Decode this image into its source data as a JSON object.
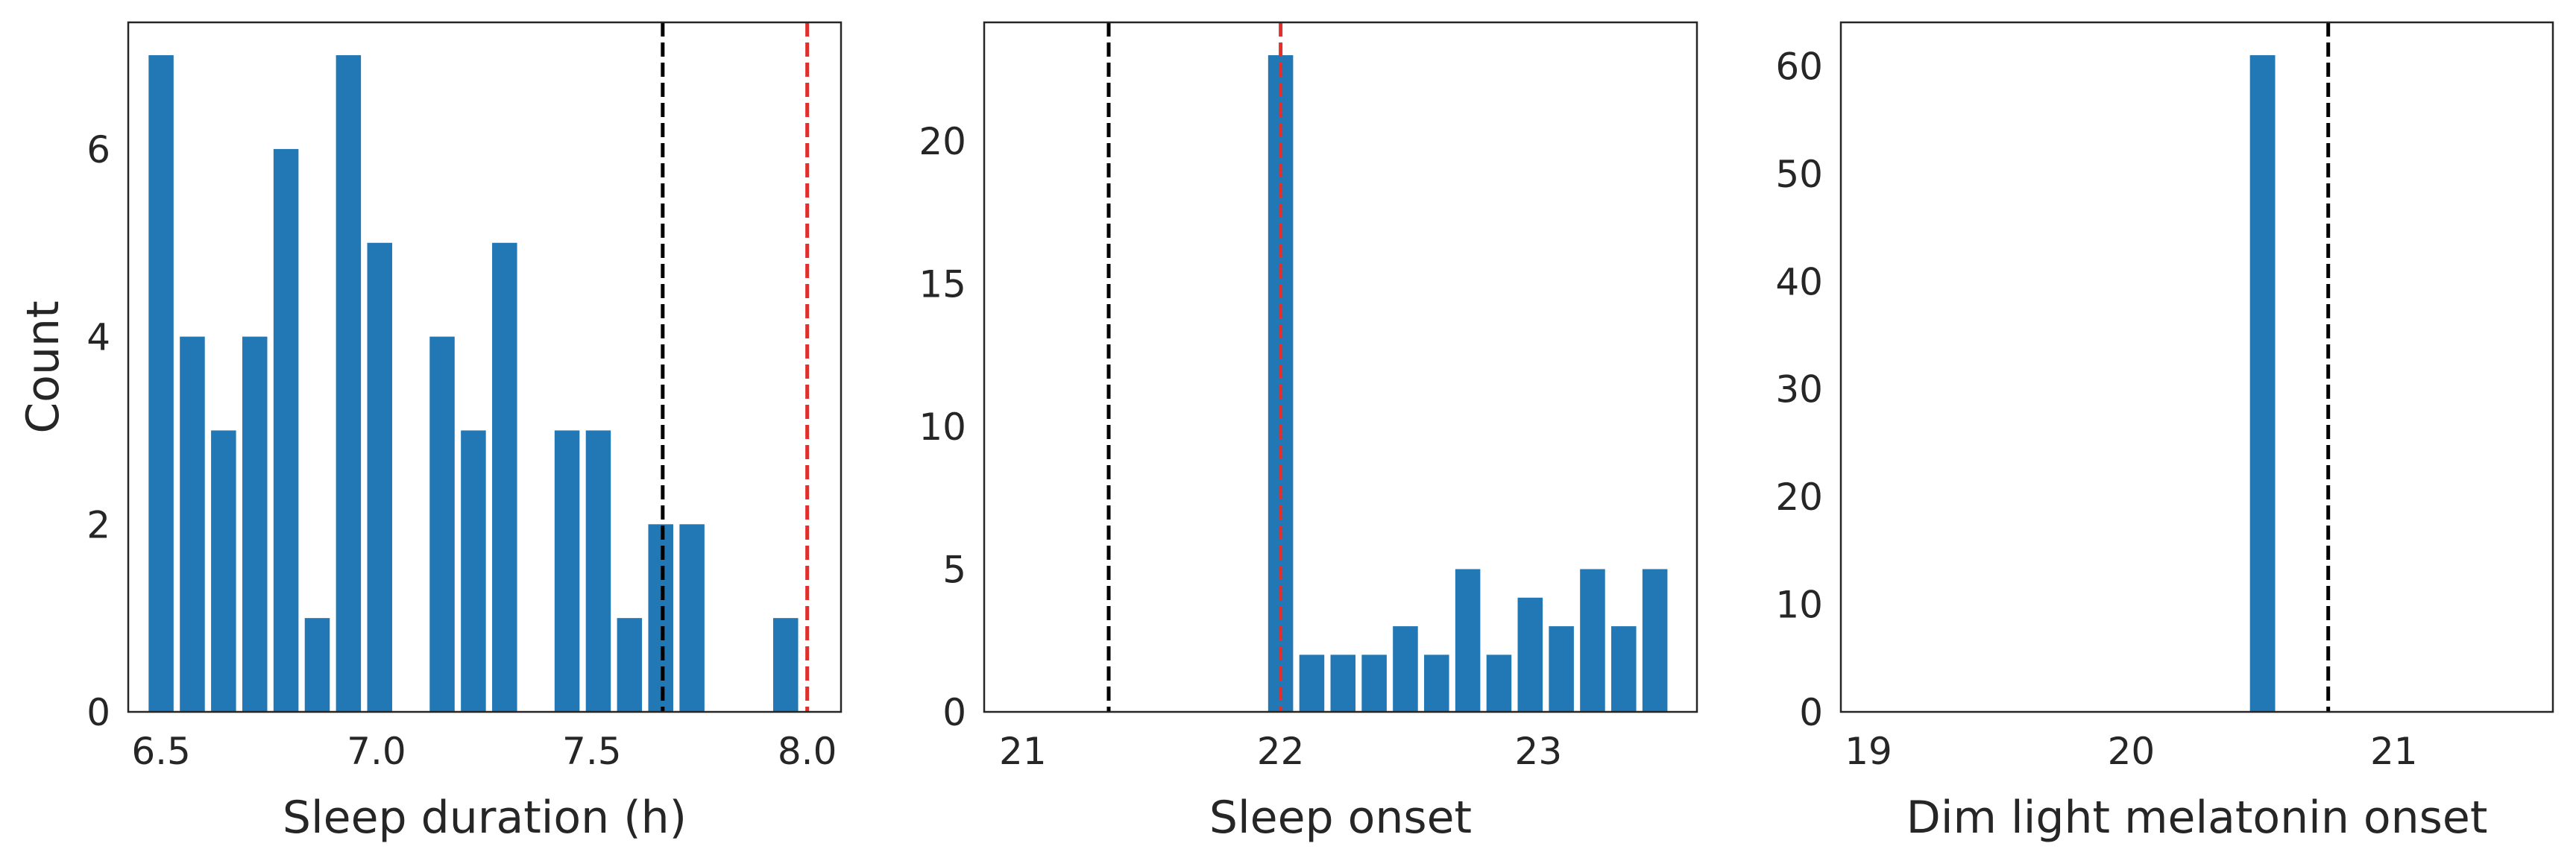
{
  "colors": {
    "bar": "#2178b4",
    "ref_black": "#000000",
    "ref_red": "#e0302e",
    "axis": "#262626"
  },
  "chart_data": [
    {
      "type": "bar",
      "xlabel": "Sleep duration (h)",
      "ylabel": "Count",
      "xlim": [
        6.4237,
        8.0785
      ],
      "ylim": [
        0,
        7.35
      ],
      "xticks": [
        6.5,
        7.0,
        7.5,
        8.0
      ],
      "xtick_labels": [
        "6.5",
        "7.0",
        "7.5",
        "8.0"
      ],
      "yticks": [
        0,
        2,
        4,
        6
      ],
      "ytick_labels": [
        "0",
        "2",
        "4",
        "6"
      ],
      "bar_width": 0.058,
      "bars": [
        {
          "x": 6.5,
          "y": 7
        },
        {
          "x": 6.5725,
          "y": 4
        },
        {
          "x": 6.645,
          "y": 3
        },
        {
          "x": 6.7175,
          "y": 4
        },
        {
          "x": 6.79,
          "y": 6
        },
        {
          "x": 6.8625,
          "y": 1
        },
        {
          "x": 6.935,
          "y": 7
        },
        {
          "x": 7.0075,
          "y": 5
        },
        {
          "x": 7.1525,
          "y": 4
        },
        {
          "x": 7.225,
          "y": 3
        },
        {
          "x": 7.2975,
          "y": 5
        },
        {
          "x": 7.4425,
          "y": 3
        },
        {
          "x": 7.515,
          "y": 3
        },
        {
          "x": 7.5875,
          "y": 1
        },
        {
          "x": 7.66,
          "y": 2
        },
        {
          "x": 7.7325,
          "y": 2
        },
        {
          "x": 7.95,
          "y": 1
        }
      ],
      "ref_lines": [
        {
          "x": 7.6645,
          "color": "black"
        },
        {
          "x": 8.0,
          "color": "red"
        }
      ],
      "grid": false
    },
    {
      "type": "bar",
      "xlabel": "Sleep onset",
      "ylabel": "",
      "xlim": [
        20.85,
        23.615
      ],
      "ylim": [
        0,
        24.15
      ],
      "xticks": [
        21,
        22,
        23
      ],
      "xtick_labels": [
        "21",
        "22",
        "23"
      ],
      "yticks": [
        0,
        5,
        10,
        15,
        20
      ],
      "ytick_labels": [
        "0",
        "5",
        "10",
        "15",
        "20"
      ],
      "bar_width": 0.097,
      "bars": [
        {
          "x": 22.0,
          "y": 23
        },
        {
          "x": 22.121,
          "y": 2
        },
        {
          "x": 22.242,
          "y": 2
        },
        {
          "x": 22.363,
          "y": 2
        },
        {
          "x": 22.484,
          "y": 3
        },
        {
          "x": 22.605,
          "y": 2
        },
        {
          "x": 22.726,
          "y": 5
        },
        {
          "x": 22.847,
          "y": 2
        },
        {
          "x": 22.968,
          "y": 4
        },
        {
          "x": 23.089,
          "y": 3
        },
        {
          "x": 23.21,
          "y": 5
        },
        {
          "x": 23.331,
          "y": 3
        },
        {
          "x": 23.452,
          "y": 5
        }
      ],
      "ref_lines": [
        {
          "x": 21.333,
          "color": "black"
        },
        {
          "x": 22.0,
          "color": "red"
        }
      ],
      "grid": false
    },
    {
      "type": "bar",
      "xlabel": "Dim light melatonin onset",
      "ylabel": "",
      "xlim": [
        18.895,
        21.605
      ],
      "ylim": [
        0,
        64.05
      ],
      "xticks": [
        19,
        20,
        21
      ],
      "xtick_labels": [
        "19",
        "20",
        "21"
      ],
      "yticks": [
        0,
        10,
        20,
        30,
        40,
        50,
        60
      ],
      "ytick_labels": [
        "0",
        "10",
        "20",
        "30",
        "40",
        "50",
        "60"
      ],
      "bar_width": 0.096,
      "bars": [
        {
          "x": 20.5,
          "y": 61
        }
      ],
      "ref_lines": [
        {
          "x": 20.75,
          "color": "black"
        }
      ],
      "grid": false
    }
  ]
}
